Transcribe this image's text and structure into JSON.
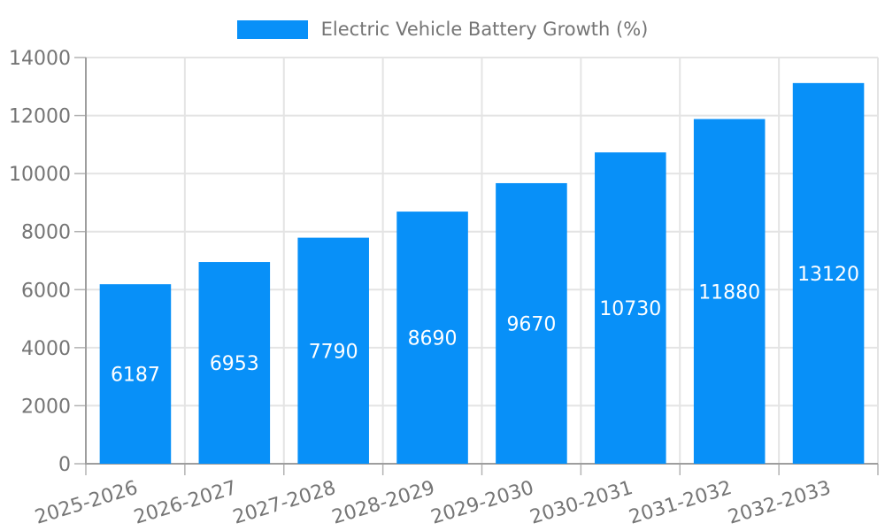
{
  "chart_data": {
    "type": "bar",
    "title": "Electric Vehicle Battery Growth (%)",
    "categories": [
      "2025-2026",
      "2026-2027",
      "2027-2028",
      "2028-2029",
      "2029-2030",
      "2030-2031",
      "2031-2032",
      "2032-2033"
    ],
    "values": [
      6187,
      6953,
      7790,
      8690,
      9670,
      10730,
      11880,
      13120
    ],
    "value_labels": [
      "6187",
      "6953",
      "7790",
      "8690",
      "9670",
      "10730",
      "11880",
      "13120"
    ],
    "xlabel": "",
    "ylabel": "",
    "ylim": [
      0,
      14000
    ],
    "yticks": [
      0,
      2000,
      4000,
      6000,
      8000,
      10000,
      12000,
      14000
    ],
    "ytick_labels": [
      "0",
      "2000",
      "4000",
      "6000",
      "8000",
      "10000",
      "12000",
      "14000"
    ],
    "grid": true,
    "legend_position": "top",
    "bar_color": "#0890F8",
    "value_label_color": "#FFFFFF",
    "grid_color": "#E4E4E4",
    "axis_color": "#9E9E9E",
    "tick_mark_color": "#B3B3B3",
    "tick_label_color": "#757575",
    "legend_text_color": "#757575"
  }
}
